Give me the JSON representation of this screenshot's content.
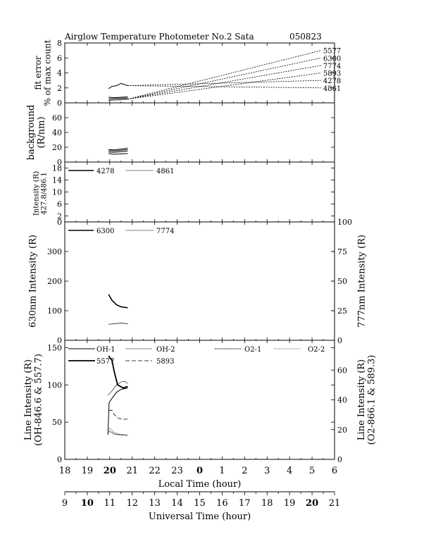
{
  "title": {
    "main": "Airglow Temperature Photometer No.2  Sata",
    "date": "050823"
  },
  "axes": {
    "local_time": {
      "label": "Local Time (hour)",
      "ticks": [
        "18",
        "19",
        "20",
        "21",
        "22",
        "23",
        "0",
        "1",
        "2",
        "3",
        "4",
        "5",
        "6"
      ],
      "bold_ticks": [
        "20",
        "0"
      ]
    },
    "universal_time": {
      "label": "Universal Time (hour)",
      "ticks": [
        "9",
        "10",
        "11",
        "12",
        "13",
        "14",
        "15",
        "16",
        "17",
        "18",
        "19",
        "20",
        "21"
      ],
      "bold_ticks": [
        "10",
        "20"
      ]
    }
  },
  "chart_data": [
    {
      "type": "line",
      "panel": "fit-error",
      "ylabel": [
        "fit error",
        "% of max count"
      ],
      "ylim": [
        0,
        8
      ],
      "yticks": [
        0,
        2,
        4,
        6,
        8
      ],
      "x_units": "local time (hour)",
      "guide_labels": [
        "5577",
        "6300",
        "7774",
        "5893",
        "4278",
        "4861"
      ],
      "guide_end_values": [
        7.0,
        6.0,
        5.0,
        4.0,
        3.0,
        2.0
      ],
      "series": [
        {
          "values": [
            [
              19.95,
              1.9
            ],
            [
              20.1,
              2.2
            ],
            [
              20.3,
              2.3
            ],
            [
              20.5,
              2.6
            ],
            [
              20.7,
              2.4
            ],
            [
              20.8,
              2.3
            ]
          ]
        },
        {
          "values": [
            [
              19.95,
              0.75
            ],
            [
              20.2,
              0.7
            ],
            [
              20.5,
              0.75
            ],
            [
              20.8,
              0.8
            ]
          ]
        },
        {
          "values": [
            [
              19.95,
              0.55
            ],
            [
              20.3,
              0.6
            ],
            [
              20.8,
              0.65
            ]
          ]
        },
        {
          "values": [
            [
              19.95,
              0.35
            ],
            [
              20.3,
              0.4
            ],
            [
              20.8,
              0.5
            ]
          ]
        }
      ]
    },
    {
      "type": "line",
      "panel": "background",
      "ylabel": [
        "background",
        "(R/nm)"
      ],
      "ylim": [
        0,
        80
      ],
      "yticks": [
        0,
        20,
        40,
        60
      ],
      "x_units": "local time (hour)",
      "series": [
        {
          "values": [
            [
              19.95,
              17
            ],
            [
              20.2,
              16.5
            ],
            [
              20.5,
              17.5
            ],
            [
              20.8,
              19
            ]
          ]
        },
        {
          "values": [
            [
              19.95,
              15.5
            ],
            [
              20.2,
              15
            ],
            [
              20.5,
              16
            ],
            [
              20.8,
              17
            ]
          ]
        },
        {
          "values": [
            [
              19.95,
              13.5
            ],
            [
              20.2,
              13
            ],
            [
              20.5,
              14
            ],
            [
              20.8,
              15
            ]
          ]
        },
        {
          "values": [
            [
              19.95,
              11.5
            ],
            [
              20.2,
              10.5
            ],
            [
              20.5,
              11
            ],
            [
              20.8,
              11.5
            ]
          ]
        }
      ]
    },
    {
      "type": "line",
      "panel": "intensity-427-486",
      "ylabel": [
        "Intensity (R)",
        "427.8/486.1"
      ],
      "ylim": [
        0,
        20
      ],
      "yticks": [
        0,
        2,
        6,
        10,
        14,
        18
      ],
      "x_units": "local time (hour)",
      "series": [
        {
          "name": "4278",
          "values": []
        },
        {
          "name": "4861",
          "values": []
        }
      ]
    },
    {
      "type": "line",
      "panel": "intensity-630-777",
      "ylabel": "630nm Intensity (R)",
      "ylabel_right": "777nm Intensity (R)",
      "ylim": [
        0,
        400
      ],
      "ylim_right": [
        0,
        100
      ],
      "yticks": [
        0,
        100,
        200,
        300
      ],
      "yticks_right": [
        0,
        25,
        50,
        75,
        100
      ],
      "x_units": "local time (hour)",
      "series": [
        {
          "name": "6300",
          "axis": "left",
          "values": [
            [
              19.95,
              155
            ],
            [
              20.1,
              135
            ],
            [
              20.3,
              120
            ],
            [
              20.5,
              113
            ],
            [
              20.8,
              110
            ]
          ]
        },
        {
          "name": "7774",
          "axis": "right",
          "values": [
            [
              19.95,
              13.5
            ],
            [
              20.2,
              14
            ],
            [
              20.5,
              14.5
            ],
            [
              20.8,
              14
            ]
          ]
        }
      ]
    },
    {
      "type": "line",
      "panel": "line-intensity",
      "ylabel": [
        "Line Intensity (R)",
        "(OH-846.6 & 557.7)"
      ],
      "ylabel_right": [
        "Line Intensity (R)",
        "(O2-866.1 & 589.3)"
      ],
      "ylim": [
        0,
        160
      ],
      "ylim_right": [
        0,
        80
      ],
      "yticks": [
        0,
        50,
        100,
        150
      ],
      "yticks_right": [
        0,
        20,
        40,
        60
      ],
      "x_units": "local time (hour)",
      "series": [
        {
          "name": "OH-1",
          "axis": "left",
          "values": [
            [
              19.92,
              33
            ],
            [
              19.97,
              76
            ],
            [
              20.1,
              82
            ],
            [
              20.3,
              90
            ],
            [
              20.5,
              94
            ],
            [
              20.8,
              96
            ]
          ]
        },
        {
          "name": "OH-2",
          "axis": "left",
          "values": [
            [
              19.92,
              86
            ],
            [
              20.1,
              92
            ],
            [
              20.3,
              100
            ],
            [
              20.5,
              104
            ],
            [
              20.65,
              105
            ],
            [
              20.8,
              102
            ]
          ]
        },
        {
          "name": "O2-1",
          "axis": "right",
          "values": [
            [
              19.92,
              18
            ],
            [
              20.0,
              19
            ],
            [
              20.2,
              17
            ],
            [
              20.4,
              16.5
            ],
            [
              20.8,
              16
            ]
          ]
        },
        {
          "name": "O2-2",
          "axis": "right",
          "values": [
            [
              19.92,
              20
            ],
            [
              20.0,
              21
            ],
            [
              20.2,
              18
            ],
            [
              20.4,
              17
            ],
            [
              20.8,
              16.5
            ]
          ]
        },
        {
          "name": "5577",
          "axis": "left",
          "values": [
            [
              19.95,
              139
            ],
            [
              20.1,
              133
            ],
            [
              20.2,
              118
            ],
            [
              20.35,
              100
            ],
            [
              20.6,
              96
            ],
            [
              20.8,
              98
            ]
          ]
        },
        {
          "name": "5893",
          "axis": "right",
          "values": [
            [
              19.95,
              33
            ],
            [
              20.1,
              33
            ],
            [
              20.2,
              30
            ],
            [
              20.4,
              27.5
            ],
            [
              20.6,
              27
            ],
            [
              20.8,
              27
            ]
          ]
        }
      ]
    }
  ]
}
